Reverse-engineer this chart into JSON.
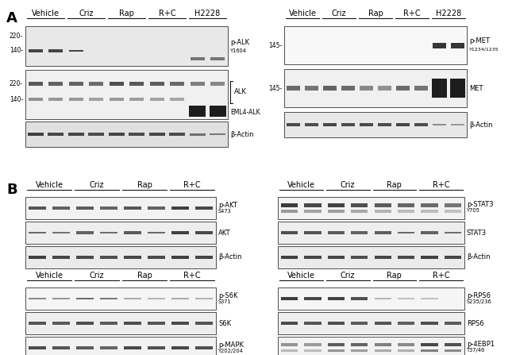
{
  "bg_color": "#ffffff",
  "lfs": 6.0,
  "slfs": 4.8,
  "hfs": 7.0,
  "sfs": 13,
  "tfs": 5.5,
  "panel_A_left": {
    "headers": [
      "Vehicle",
      "Criz",
      "Rap",
      "R+C",
      "H2228"
    ],
    "n_lanes": 10,
    "gel_bg_row0": "#e8e8e8",
    "gel_bg_row1": "#f0f0f0",
    "gel_bg_row2": "#e0e0e0"
  },
  "panel_A_right": {
    "headers": [
      "Vehicle",
      "Criz",
      "Rap",
      "R+C",
      "H2228"
    ],
    "n_lanes": 10,
    "gel_bg_row0": "#f8f8f8",
    "gel_bg_row1": "#f0f0f0",
    "gel_bg_row2": "#e8e8e8"
  },
  "panel_B_left": {
    "headers": [
      "Vehicle",
      "Criz",
      "Rap",
      "R+C"
    ],
    "n_lanes": 8
  },
  "panel_B_right": {
    "headers": [
      "Vehicle",
      "Criz",
      "Rap",
      "R+C"
    ],
    "n_lanes": 8
  }
}
